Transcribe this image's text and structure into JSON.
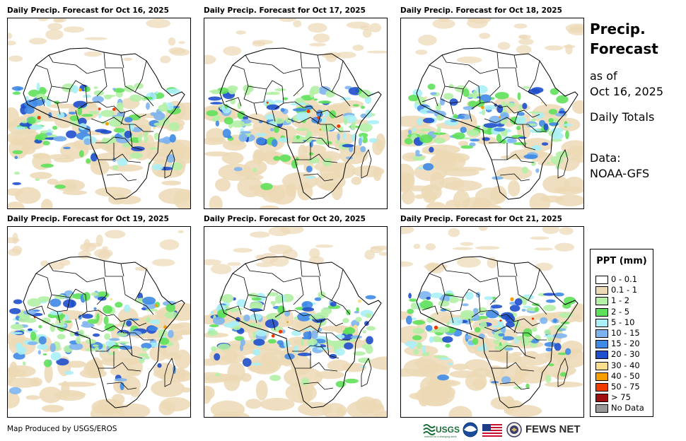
{
  "panels": [
    {
      "title": "Daily Precip. Forecast for Oct 16, 2025",
      "variant": 0
    },
    {
      "title": "Daily Precip. Forecast for Oct 17, 2025",
      "variant": 1
    },
    {
      "title": "Daily Precip. Forecast for Oct 18, 2025",
      "variant": 2
    },
    {
      "title": "Daily Precip. Forecast for Oct 19, 2025",
      "variant": 3
    },
    {
      "title": "Daily Precip. Forecast for Oct 20, 2025",
      "variant": 4
    },
    {
      "title": "Daily Precip. Forecast for Oct 21, 2025",
      "variant": 5
    }
  ],
  "side": {
    "title_line1": "Precip.",
    "title_line2": "Forecast",
    "as_of": "as of",
    "date": "Oct 16, 2025",
    "totals": "Daily Totals",
    "data_label": "Data:",
    "data_source": "NOAA-GFS"
  },
  "legend": {
    "title": "PPT (mm)",
    "items": [
      {
        "label": "0 - 0.1",
        "color": "#ffffff"
      },
      {
        "label": "0.1 - 1",
        "color": "#ecd9b5"
      },
      {
        "label": "1 - 2",
        "color": "#b4f0a6"
      },
      {
        "label": "2 - 5",
        "color": "#5fe05a"
      },
      {
        "label": "5 - 10",
        "color": "#aaf0f6"
      },
      {
        "label": "10 - 15",
        "color": "#7db4f0"
      },
      {
        "label": "15 - 20",
        "color": "#3f8ae6"
      },
      {
        "label": "20 - 30",
        "color": "#1f4fcc"
      },
      {
        "label": "30 - 40",
        "color": "#fae08c"
      },
      {
        "label": "40 - 50",
        "color": "#f5a000"
      },
      {
        "label": "50 - 75",
        "color": "#f03c00"
      },
      {
        "label": "> 75",
        "color": "#a01010"
      },
      {
        "label": "No Data",
        "color": "#999999"
      }
    ]
  },
  "footer": {
    "credit": "Map Produced by USGS/EROS",
    "usgs": "USGS",
    "usgs_tagline": "science for a changing world",
    "fews": "FEWS NET"
  }
}
